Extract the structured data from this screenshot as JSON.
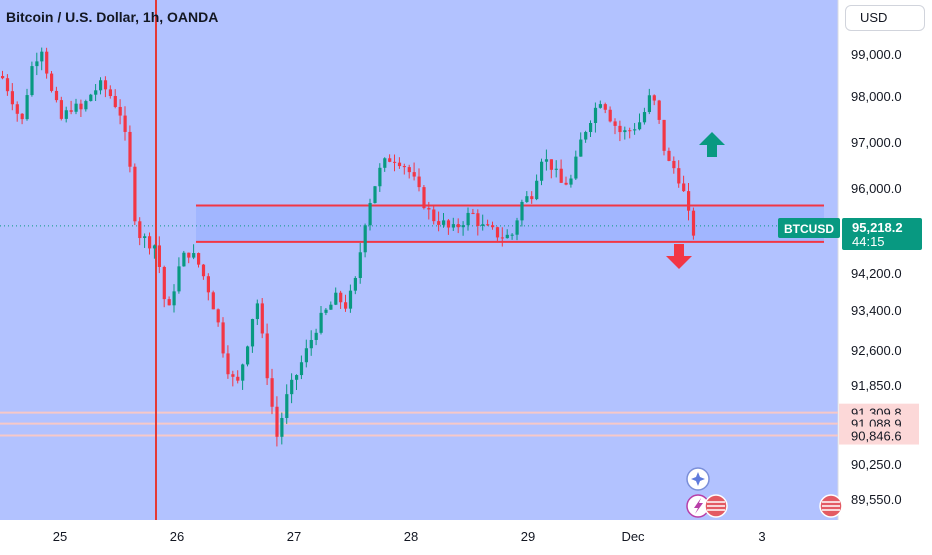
{
  "toolbar": {
    "currency_label": "USD"
  },
  "chart_data": {
    "type": "candlestick",
    "title": "Bitcoin / U.S. Dollar, 1h, OANDA",
    "symbol": "BTCUSD",
    "last_price": "95,218.2",
    "countdown": "44:15",
    "x_tick_labels": [
      "25",
      "26",
      "27",
      "28",
      "29",
      "Dec",
      "3"
    ],
    "y_tick_labels": [
      "99,000.0",
      "98,000.0",
      "97,000.0",
      "96,000.0",
      "94,200.0",
      "93,400.0",
      "92,600.0",
      "91,850.0",
      "90,250.0",
      "89,550.0"
    ],
    "y_ticks": [
      99000,
      98000,
      97000,
      96000,
      94200,
      93400,
      92600,
      91850,
      90250,
      89550
    ],
    "ylim": [
      89200,
      99700
    ],
    "price_levels": [
      {
        "label": "91,309.8",
        "value": 91309.8
      },
      {
        "label": "91,088.9",
        "value": 91088.9
      },
      {
        "label": "90,846.6",
        "value": 90846.6
      }
    ],
    "range_zone": {
      "upper": 95650,
      "lower": 94880
    },
    "arrows": [
      {
        "direction": "up",
        "color": "#089981"
      },
      {
        "direction": "down",
        "color": "#f23645"
      }
    ],
    "colors": {
      "up": "#089981",
      "down": "#f23645",
      "background": "#b2c2ff",
      "level_line": "#f7c8c8"
    }
  }
}
